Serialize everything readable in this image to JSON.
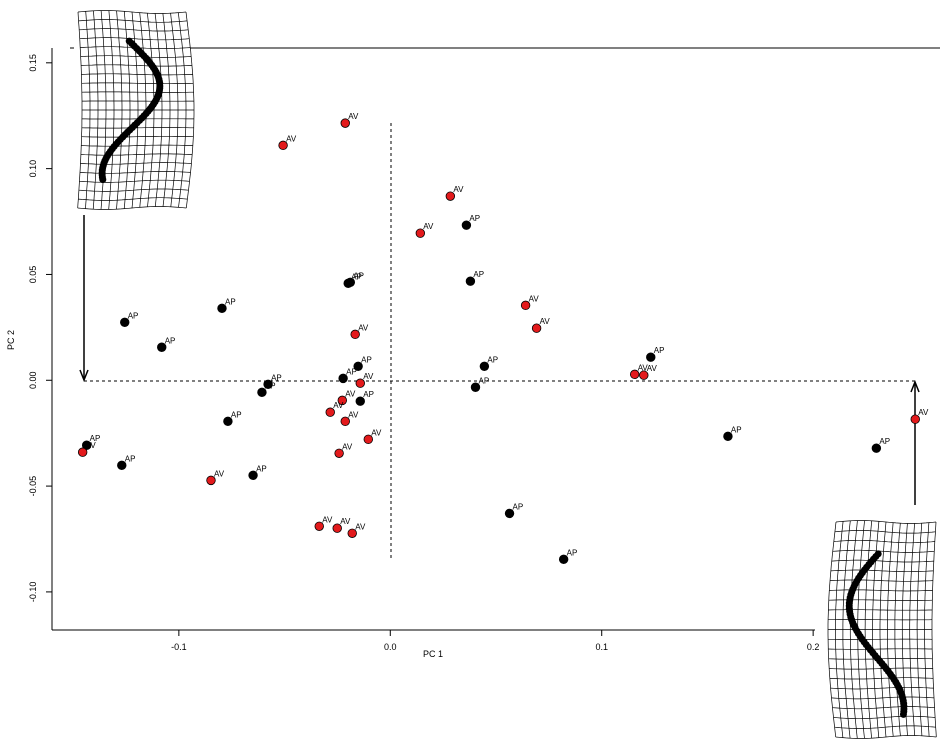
{
  "chart_data": {
    "type": "scatter",
    "x_label": "PC 1",
    "y_label": "PC 2",
    "xlim": [
      -0.16,
      0.26
    ],
    "ylim": [
      -0.118,
      0.157
    ],
    "xticks": [
      -0.1,
      {
        "value": 0,
        "label": "0.0"
      },
      0.1,
      0.2
    ],
    "yticks": [
      {
        "value": -0.1,
        "label": "-0.10"
      },
      -0.05,
      {
        "value": 0,
        "label": "0.00"
      },
      0.05,
      {
        "value": 0.1,
        "label": "0.10"
      },
      0.15
    ],
    "series": [
      {
        "name": "AP",
        "color": "#000000",
        "x": [
          0.036,
          -0.0199,
          -0.0189,
          0.0379,
          -0.0796,
          -0.1256,
          -0.1081,
          -0.0152,
          -0.0223,
          0.0445,
          0.1232,
          0.0403,
          -0.0578,
          -0.0607,
          -0.0142,
          -0.0768,
          -0.1436,
          -0.127,
          -0.0649,
          0.1597,
          0.2299,
          0.0564,
          0.082
        ],
        "y": [
          0.0733,
          0.0458,
          0.0463,
          0.0468,
          0.034,
          0.0274,
          0.0156,
          0.0066,
          0.0009,
          0.0066,
          0.0109,
          -0.0033,
          -0.0019,
          -0.0057,
          -0.0099,
          -0.0194,
          -0.0307,
          -0.0402,
          -0.0449,
          -0.0265,
          -0.0321,
          -0.0629,
          -0.0846
        ]
      },
      {
        "name": "AV",
        "color": "#e31a1c",
        "x": [
          -0.0213,
          -0.0507,
          0.0284,
          0.0142,
          0.064,
          0.0692,
          -0.0166,
          -0.0142,
          0.1156,
          0.1199,
          -0.0227,
          -0.0284,
          -0.0213,
          -0.0104,
          -0.0242,
          -0.1455,
          -0.0848,
          0.2483,
          -0.0336,
          -0.0251,
          -0.018
        ],
        "y": [
          0.1215,
          0.111,
          0.087,
          0.0695,
          0.0354,
          0.0246,
          0.0217,
          -0.0014,
          0.0028,
          0.0024,
          -0.0095,
          -0.0151,
          -0.0194,
          -0.0279,
          -0.0345,
          -0.034,
          -0.0473,
          -0.0184,
          -0.069,
          -0.0699,
          -0.0723
        ]
      }
    ]
  }
}
